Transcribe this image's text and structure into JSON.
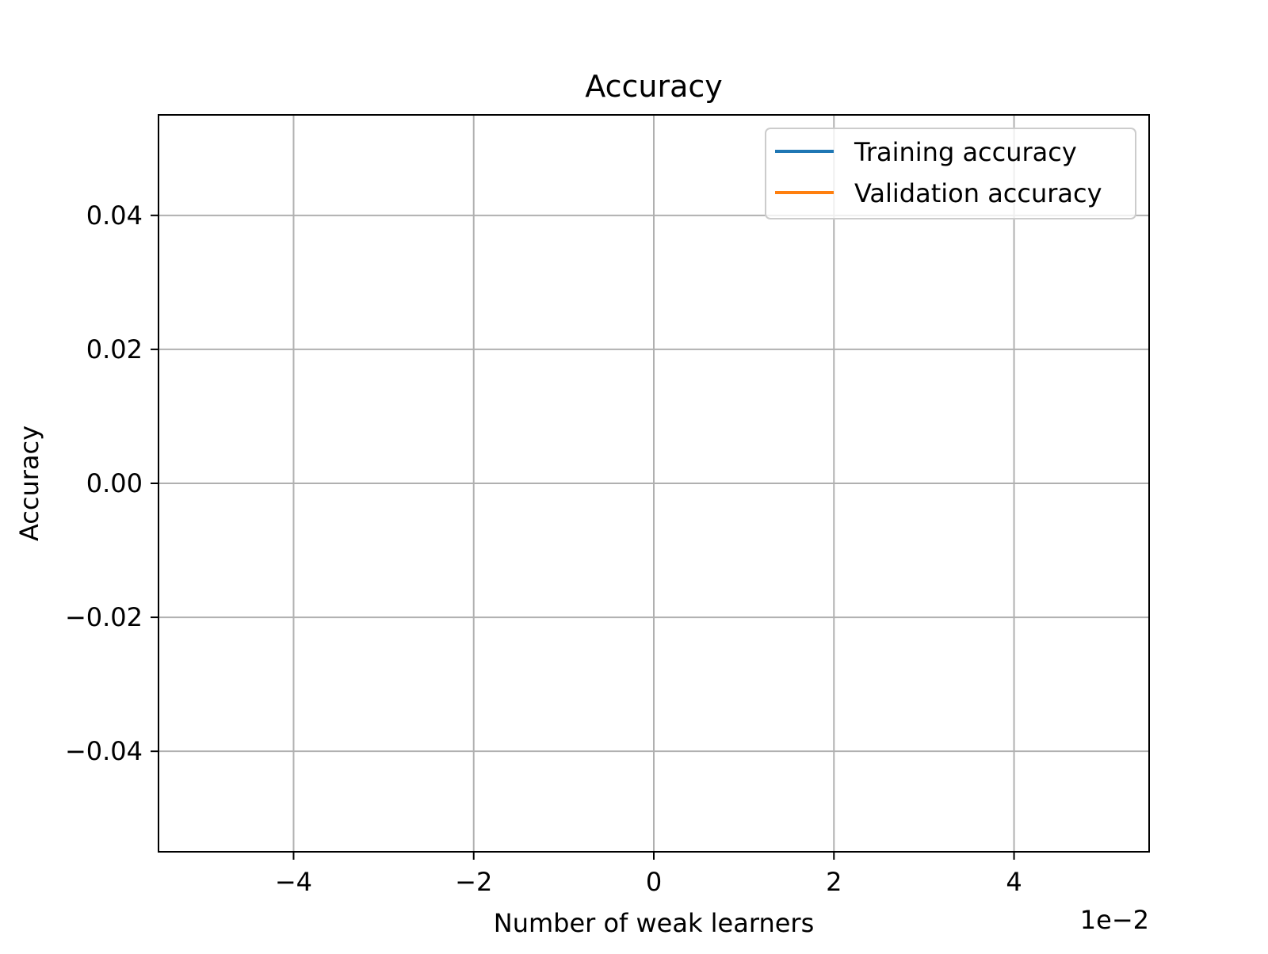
{
  "chart_data": {
    "type": "line",
    "title": "Accuracy",
    "xlabel": "Number of weak learners",
    "ylabel": "Accuracy",
    "x_offset_text": "1e−2",
    "x": [],
    "series": [
      {
        "name": "Training accuracy",
        "color": "#1f77b4",
        "values": []
      },
      {
        "name": "Validation accuracy",
        "color": "#ff7f0e",
        "values": []
      }
    ],
    "xlim": [
      -5.5,
      5.5
    ],
    "ylim": [
      -0.055,
      0.055
    ],
    "x_ticks": [
      -4,
      -2,
      0,
      2,
      4
    ],
    "x_tick_labels": [
      "−4",
      "−2",
      "0",
      "2",
      "4"
    ],
    "y_ticks": [
      -0.04,
      -0.02,
      0.0,
      0.02,
      0.04
    ],
    "y_tick_labels": [
      "−0.04",
      "−0.02",
      "0.00",
      "0.02",
      "0.04"
    ],
    "grid": true,
    "legend_position": "top-right",
    "colors": {
      "grid": "#b0b0b0",
      "axes": "#000000",
      "legend_border": "#cccccc"
    }
  }
}
